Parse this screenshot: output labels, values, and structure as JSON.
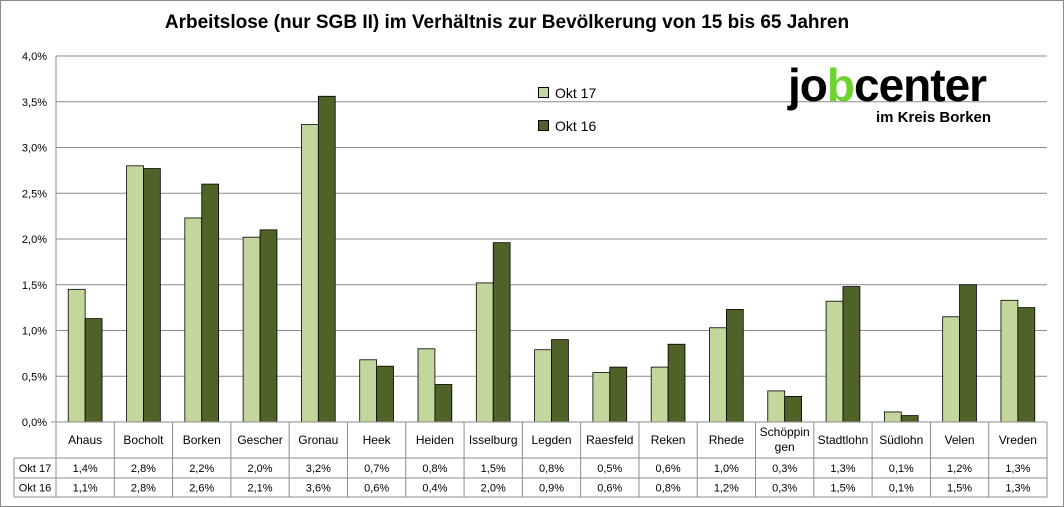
{
  "chart_data": {
    "type": "bar",
    "title": "Arbeitslose (nur SGB II) im Verhältnis zur Bevölkerung von 15 bis 65 Jahren",
    "categories": [
      "Ahaus",
      "Bocholt",
      "Borken",
      "Gescher",
      "Gronau",
      "Heek",
      "Heiden",
      "Isselburg",
      "Legden",
      "Raesfeld",
      "Reken",
      "Rhede",
      "Schöppin gen",
      "Stadtlohn",
      "Südlohn",
      "Velen",
      "Vreden"
    ],
    "category_lines": [
      [
        "Ahaus"
      ],
      [
        "Bocholt"
      ],
      [
        "Borken"
      ],
      [
        "Gescher"
      ],
      [
        "Gronau"
      ],
      [
        "Heek"
      ],
      [
        "Heiden"
      ],
      [
        "Isselburg"
      ],
      [
        "Legden"
      ],
      [
        "Raesfeld"
      ],
      [
        "Reken"
      ],
      [
        "Rhede"
      ],
      [
        "Schöppin",
        "gen"
      ],
      [
        "Stadtlohn"
      ],
      [
        "Südlohn"
      ],
      [
        "Velen"
      ],
      [
        "Vreden"
      ]
    ],
    "series": [
      {
        "name": "Okt 17",
        "color": "#c3d69b",
        "values": [
          1.45,
          2.8,
          2.23,
          2.02,
          3.25,
          0.68,
          0.8,
          1.52,
          0.79,
          0.54,
          0.6,
          1.03,
          0.34,
          1.32,
          0.11,
          1.15,
          1.33
        ],
        "labels": [
          "1,4%",
          "2,8%",
          "2,2%",
          "2,0%",
          "3,2%",
          "0,7%",
          "0,8%",
          "1,5%",
          "0,8%",
          "0,5%",
          "0,6%",
          "1,0%",
          "0,3%",
          "1,3%",
          "0,1%",
          "1,2%",
          "1,3%"
        ]
      },
      {
        "name": "Okt 16",
        "color": "#4f6228",
        "values": [
          1.13,
          2.77,
          2.6,
          2.1,
          3.56,
          0.61,
          0.41,
          1.96,
          0.9,
          0.6,
          0.85,
          1.23,
          0.28,
          1.48,
          0.07,
          1.5,
          1.25
        ],
        "labels": [
          "1,1%",
          "2,8%",
          "2,6%",
          "2,1%",
          "3,6%",
          "0,6%",
          "0,4%",
          "2,0%",
          "0,9%",
          "0,6%",
          "0,8%",
          "1,2%",
          "0,3%",
          "1,5%",
          "0,1%",
          "1,5%",
          "1,3%"
        ]
      }
    ],
    "ylim": [
      0,
      4.0
    ],
    "yticks": [
      "0,0%",
      "0,5%",
      "1,0%",
      "1,5%",
      "2,0%",
      "2,5%",
      "3,0%",
      "3,5%",
      "4,0%"
    ],
    "grid": true,
    "legend_position": "top-center",
    "data_table": true
  },
  "logo": {
    "text_a": "jo",
    "text_b": "b",
    "text_c": "center",
    "subtitle": "im Kreis Borken"
  }
}
